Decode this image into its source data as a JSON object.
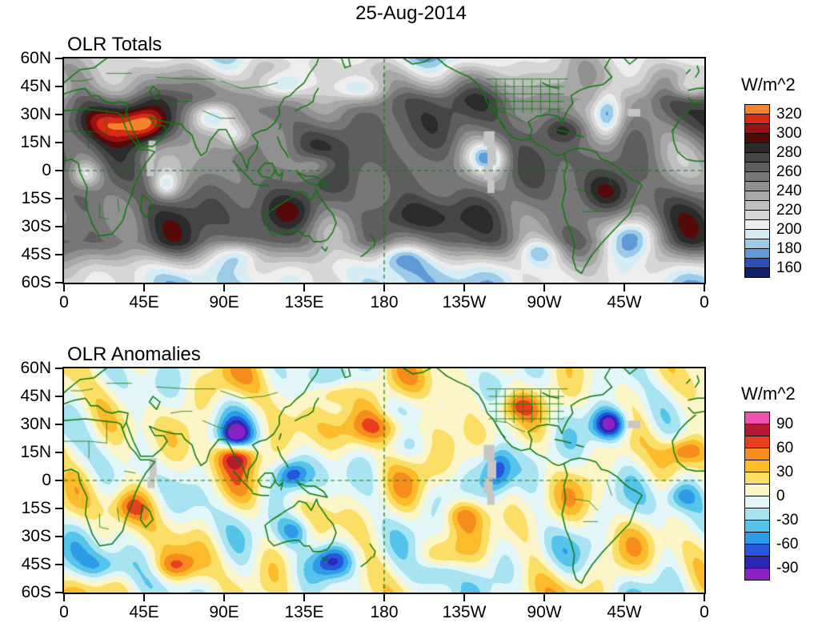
{
  "title": "25-Aug-2014",
  "panels": [
    {
      "title": "OLR Totals",
      "colorbar_label": "W/m^2"
    },
    {
      "title": "OLR Anomalies",
      "colorbar_label": "W/m^2"
    }
  ],
  "axes": {
    "lat_ticks": [
      "60N",
      "45N",
      "30N",
      "15N",
      "0",
      "15S",
      "30S",
      "45S",
      "60S"
    ],
    "lon_ticks": [
      "0",
      "45E",
      "90E",
      "135E",
      "180",
      "135W",
      "90W",
      "45W",
      "0"
    ]
  },
  "chart_data": [
    {
      "type": "heatmap",
      "subtype": "filled-contour world map",
      "title": "OLR Totals",
      "date": "25-Aug-2014",
      "units": "W/m^2",
      "projection": "cylindrical equidistant, longitude 0E eastward to 0E (180 at center), latitude 60S-60N",
      "x_ticks": [
        "0",
        "45E",
        "90E",
        "135E",
        "180",
        "135W",
        "90W",
        "45W",
        "0"
      ],
      "y_ticks": [
        "60N",
        "45N",
        "30N",
        "15N",
        "0",
        "15S",
        "30S",
        "45S",
        "60S"
      ],
      "contour_levels": [
        160,
        170,
        180,
        190,
        200,
        210,
        220,
        230,
        240,
        250,
        260,
        270,
        280,
        290,
        300,
        310,
        320
      ],
      "colorbar_tick_labels": [
        320,
        300,
        280,
        260,
        240,
        220,
        200,
        180,
        160
      ],
      "colors_low_to_high": [
        "#10206E",
        "#2B50B8",
        "#5E9AD6",
        "#9CCBE8",
        "#D6ECF5",
        "#EDEDED",
        "#D6D6D6",
        "#BFBFBF",
        "#A8A8A8",
        "#909090",
        "#777777",
        "#5E5E5E",
        "#454545",
        "#2B2B2B",
        "#550A0A",
        "#9B1212",
        "#D92C16",
        "#F5822D"
      ],
      "overlay": {
        "coastline_color": "#0B7A0B",
        "dashed_lines": [
          "equator",
          "dateline-180"
        ],
        "missing_data_color": "#C6C6C6",
        "missing_data_regions": [
          "narrow strip near 50E, 16N-3S",
          "jagged strip near 120W, 21N-12S",
          "small box near 40W, 30N"
        ]
      },
      "notable_features": [
        "Very high OLR (red/orange, >300 W/m^2) over North Africa and Arabia",
        "Broad dark-maroon high OLR (280-300) across the subtropics, Australia and tropical South America",
        "Low OLR (blues, <200) over the Himalaya/Bay of Bengal, NE Asia, east Pacific ITCZ, a NW-SE streak over the western North Atlantic, SW Atlantic and the Southern Ocean storm track",
        "Grays (200-280) dominate the midlatitudes"
      ]
    },
    {
      "type": "heatmap",
      "subtype": "filled-contour world map",
      "title": "OLR Anomalies",
      "date": "25-Aug-2014",
      "units": "W/m^2",
      "projection": "cylindrical equidistant, longitude 0E eastward to 0E (180 at center), latitude 60S-60N",
      "x_ticks": [
        "0",
        "45E",
        "90E",
        "135E",
        "180",
        "135W",
        "90W",
        "45W",
        "0"
      ],
      "y_ticks": [
        "60N",
        "45N",
        "30N",
        "15N",
        "0",
        "15S",
        "30S",
        "45S",
        "60S"
      ],
      "contour_levels": [
        -90,
        -75,
        -60,
        -45,
        -30,
        -15,
        0,
        15,
        30,
        45,
        60,
        75,
        90
      ],
      "colorbar_tick_labels": [
        90,
        60,
        30,
        0,
        -30,
        -60,
        -90
      ],
      "colors_low_to_high": [
        "#8B22C8",
        "#2A28B4",
        "#2556DC",
        "#2E9BE6",
        "#55C3EA",
        "#A8E3F2",
        "#E2F6F8",
        "#FCF5C8",
        "#FBDE66",
        "#FBBB2A",
        "#F68C1E",
        "#E8401E",
        "#B81830",
        "#EE53B0"
      ],
      "overlay": {
        "coastline_color": "#0B7A0B",
        "dashed_lines": [
          "equator",
          "dateline-180"
        ],
        "missing_data_color": "#C6C6C6",
        "missing_data_regions": [
          "narrow strip near 50E, 12N-4S",
          "jagged strip near 120W, 19N-13S",
          "small box near 40W, 30N"
        ]
      },
      "notable_features": [
        "Strong negative anomaly (purple/dark blue, < -90) over the western North Atlantic near 30N",
        "Positive anomalies (orange, 30-60) across the central North Pacific near 15-30N and over the Indian subcontinent",
        "Scattered negative anomalies (blue) over the Maritime Continent, Australia and Southern Ocean",
        "Background mostly weak positive (pale yellow, 0-15) with pale cyan (0 to -15) patches"
      ]
    }
  ]
}
